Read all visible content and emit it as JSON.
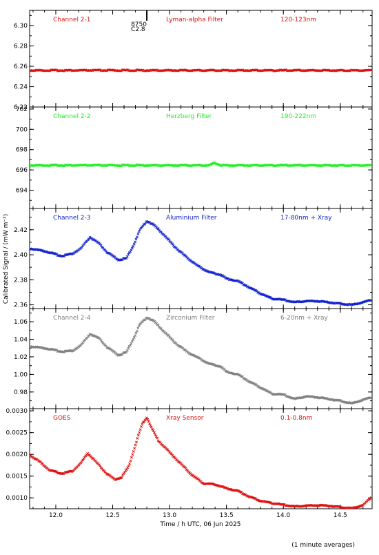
{
  "figure": {
    "ylabel": "Calibrated Signal / (mW m⁻²)",
    "xlabel": "Time / h UTC, 06 Jun 2025",
    "footnote": "(1 minute averages)",
    "flare_marker": {
      "x": 12.8,
      "label_top": "8750",
      "label_bottom": "C2.8"
    }
  },
  "chart_data": [
    {
      "type": "scatter",
      "channel": "Channel 2-1",
      "filter": "Lyman-alpha Filter",
      "band": "120-123nm",
      "color": "#dd1111",
      "ylim": [
        6.22,
        6.315
      ],
      "yticks": [
        6.22,
        6.24,
        6.26,
        6.28,
        6.3
      ],
      "ytick_labels": [
        "6.22",
        "6.24",
        "6.26",
        "6.28",
        "6.30"
      ],
      "xlim": [
        11.77,
        14.78
      ],
      "points": [
        [
          11.77,
          6.256
        ],
        [
          12.5,
          6.256
        ],
        [
          13.0,
          6.256
        ],
        [
          13.5,
          6.256
        ],
        [
          14.0,
          6.256
        ],
        [
          14.78,
          6.256
        ]
      ]
    },
    {
      "type": "scatter",
      "channel": "Channel 2-2",
      "filter": "Herzberg Filter",
      "band": "190-222nm",
      "color": "#22ee22",
      "ylim": [
        692.2,
        702.2
      ],
      "yticks": [
        694,
        696,
        698,
        700,
        702
      ],
      "ytick_labels": [
        "694",
        "696",
        "698",
        "700",
        "702"
      ],
      "xlim": [
        11.77,
        14.78
      ],
      "points": [
        [
          11.77,
          696.45
        ],
        [
          13.35,
          696.45
        ],
        [
          13.4,
          696.7
        ],
        [
          13.45,
          696.45
        ],
        [
          14.78,
          696.45
        ]
      ]
    },
    {
      "type": "scatter",
      "channel": "Channel 2-3",
      "filter": "Aluminium Filter",
      "band": "17-80nm + Xray",
      "color": "#1122cc",
      "ylim": [
        2.357,
        2.437
      ],
      "yticks": [
        2.36,
        2.38,
        2.4,
        2.42
      ],
      "ytick_labels": [
        "2.36",
        "2.38",
        "2.40",
        "2.42"
      ],
      "xlim": [
        11.77,
        14.78
      ],
      "points": [
        [
          11.77,
          2.405
        ],
        [
          11.9,
          2.403
        ],
        [
          12.05,
          2.399
        ],
        [
          12.15,
          2.401
        ],
        [
          12.22,
          2.405
        ],
        [
          12.3,
          2.414
        ],
        [
          12.38,
          2.409
        ],
        [
          12.45,
          2.402
        ],
        [
          12.55,
          2.396
        ],
        [
          12.62,
          2.397
        ],
        [
          12.68,
          2.407
        ],
        [
          12.74,
          2.42
        ],
        [
          12.8,
          2.427
        ],
        [
          12.86,
          2.424
        ],
        [
          12.95,
          2.416
        ],
        [
          13.05,
          2.406
        ],
        [
          13.15,
          2.398
        ],
        [
          13.25,
          2.391
        ],
        [
          13.35,
          2.386
        ],
        [
          13.45,
          2.384
        ],
        [
          13.5,
          2.381
        ],
        [
          13.6,
          2.379
        ],
        [
          13.7,
          2.374
        ],
        [
          13.8,
          2.369
        ],
        [
          13.9,
          2.365
        ],
        [
          14.0,
          2.364
        ],
        [
          14.1,
          2.362
        ],
        [
          14.2,
          2.363
        ],
        [
          14.3,
          2.363
        ],
        [
          14.4,
          2.362
        ],
        [
          14.5,
          2.361
        ],
        [
          14.6,
          2.36
        ],
        [
          14.7,
          2.362
        ],
        [
          14.78,
          2.364
        ]
      ]
    },
    {
      "type": "scatter",
      "channel": "Channel 2-4",
      "filter": "Zirconium Filter",
      "band": "6-20nm + Xray",
      "color": "#808080",
      "ylim": [
        0.961,
        1.075
      ],
      "yticks": [
        0.98,
        1.0,
        1.02,
        1.04,
        1.06
      ],
      "ytick_labels": [
        "0.98",
        "1.00",
        "1.02",
        "1.04",
        "1.06"
      ],
      "xlim": [
        11.77,
        14.78
      ],
      "points": [
        [
          11.77,
          1.032
        ],
        [
          11.9,
          1.03
        ],
        [
          12.05,
          1.026
        ],
        [
          12.15,
          1.027
        ],
        [
          12.22,
          1.033
        ],
        [
          12.3,
          1.046
        ],
        [
          12.38,
          1.041
        ],
        [
          12.45,
          1.031
        ],
        [
          12.55,
          1.022
        ],
        [
          12.62,
          1.025
        ],
        [
          12.68,
          1.04
        ],
        [
          12.74,
          1.057
        ],
        [
          12.8,
          1.065
        ],
        [
          12.86,
          1.061
        ],
        [
          12.95,
          1.049
        ],
        [
          13.05,
          1.036
        ],
        [
          13.15,
          1.026
        ],
        [
          13.25,
          1.019
        ],
        [
          13.35,
          1.012
        ],
        [
          13.45,
          1.009
        ],
        [
          13.5,
          1.003
        ],
        [
          13.6,
          1.0
        ],
        [
          13.7,
          0.992
        ],
        [
          13.8,
          0.985
        ],
        [
          13.9,
          0.978
        ],
        [
          14.0,
          0.977
        ],
        [
          14.1,
          0.972
        ],
        [
          14.2,
          0.975
        ],
        [
          14.3,
          0.974
        ],
        [
          14.4,
          0.972
        ],
        [
          14.5,
          0.97
        ],
        [
          14.6,
          0.967
        ],
        [
          14.7,
          0.971
        ],
        [
          14.78,
          0.974
        ]
      ]
    },
    {
      "type": "scatter",
      "channel": "GOES",
      "filter": "Xray Sensor",
      "band": "0.1-0.8nm",
      "color": "#dd1111",
      "ylim": [
        0.00075,
        0.00305
      ],
      "yticks": [
        0.001,
        0.0015,
        0.002,
        0.0025,
        0.003
      ],
      "ytick_labels": [
        "0.0010",
        "0.0015",
        "0.0020",
        "0.0025",
        "0.0030"
      ],
      "xlim": [
        11.77,
        14.78
      ],
      "points": [
        [
          11.77,
          0.00198
        ],
        [
          11.85,
          0.00185
        ],
        [
          11.95,
          0.00163
        ],
        [
          12.05,
          0.00156
        ],
        [
          12.15,
          0.00162
        ],
        [
          12.22,
          0.0018
        ],
        [
          12.28,
          0.00202
        ],
        [
          12.32,
          0.00192
        ],
        [
          12.38,
          0.00175
        ],
        [
          12.45,
          0.00155
        ],
        [
          12.52,
          0.00142
        ],
        [
          12.58,
          0.00148
        ],
        [
          12.64,
          0.00172
        ],
        [
          12.7,
          0.00222
        ],
        [
          12.76,
          0.0027
        ],
        [
          12.8,
          0.00285
        ],
        [
          12.84,
          0.00262
        ],
        [
          12.9,
          0.00232
        ],
        [
          13.0,
          0.00205
        ],
        [
          13.1,
          0.00178
        ],
        [
          13.2,
          0.00152
        ],
        [
          13.3,
          0.00133
        ],
        [
          13.4,
          0.00131
        ],
        [
          13.5,
          0.00122
        ],
        [
          13.6,
          0.00116
        ],
        [
          13.7,
          0.00103
        ],
        [
          13.8,
          0.00093
        ],
        [
          13.9,
          0.00088
        ],
        [
          14.0,
          0.00084
        ],
        [
          14.1,
          0.0008
        ],
        [
          14.2,
          0.00082
        ],
        [
          14.3,
          0.00083
        ],
        [
          14.4,
          0.00082
        ],
        [
          14.5,
          0.00079
        ],
        [
          14.6,
          0.00076
        ],
        [
          14.7,
          0.00083
        ],
        [
          14.78,
          0.00103
        ]
      ]
    }
  ],
  "x_axis": {
    "ticks": [
      12.0,
      12.5,
      13.0,
      13.5,
      14.0,
      14.5
    ],
    "tick_labels": [
      "12.0",
      "12.5",
      "13.0",
      "13.5",
      "14.0",
      "14.5"
    ]
  }
}
